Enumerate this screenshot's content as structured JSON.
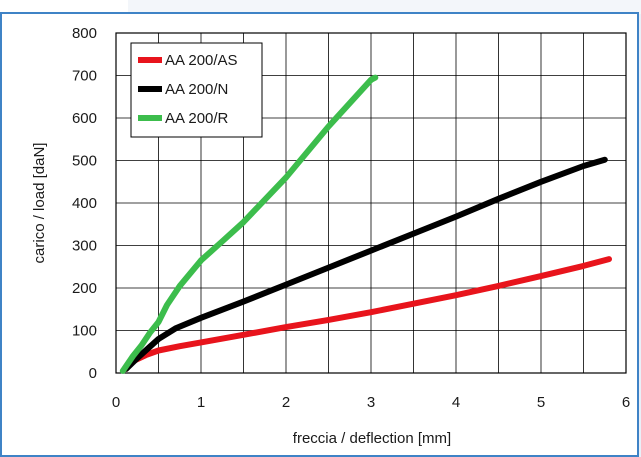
{
  "chart_data": {
    "type": "line",
    "title": "",
    "xlabel": "freccia / deflection [mm]",
    "ylabel": "carico / load [daN]",
    "xlim": [
      0,
      6
    ],
    "ylim": [
      0,
      800
    ],
    "x_ticks": [
      0,
      1,
      2,
      3,
      4,
      5,
      6
    ],
    "y_ticks": [
      0,
      100,
      200,
      300,
      400,
      500,
      600,
      700,
      800
    ],
    "x_minor_step": 0.5,
    "grid": true,
    "legend_position": "top-left",
    "series": [
      {
        "name": "AA 200/AS",
        "color": "#e8141c",
        "points": [
          [
            0.12,
            10
          ],
          [
            0.2,
            28
          ],
          [
            0.35,
            42
          ],
          [
            0.5,
            53
          ],
          [
            0.75,
            63
          ],
          [
            1.0,
            72
          ],
          [
            1.5,
            90
          ],
          [
            2.0,
            108
          ],
          [
            2.5,
            125
          ],
          [
            3.0,
            143
          ],
          [
            3.5,
            163
          ],
          [
            4.0,
            183
          ],
          [
            4.5,
            205
          ],
          [
            5.0,
            228
          ],
          [
            5.5,
            252
          ],
          [
            5.8,
            268
          ]
        ]
      },
      {
        "name": "AA 200/N",
        "color": "#000000",
        "points": [
          [
            0.12,
            10
          ],
          [
            0.25,
            35
          ],
          [
            0.4,
            62
          ],
          [
            0.5,
            80
          ],
          [
            0.7,
            105
          ],
          [
            1.0,
            130
          ],
          [
            1.5,
            168
          ],
          [
            2.0,
            208
          ],
          [
            2.5,
            248
          ],
          [
            3.0,
            288
          ],
          [
            3.5,
            328
          ],
          [
            4.0,
            368
          ],
          [
            4.5,
            410
          ],
          [
            5.0,
            450
          ],
          [
            5.5,
            487
          ],
          [
            5.75,
            502
          ]
        ]
      },
      {
        "name": "AA 200/R",
        "color": "#3cbd4c",
        "points": [
          [
            0.08,
            5
          ],
          [
            0.2,
            40
          ],
          [
            0.3,
            65
          ],
          [
            0.4,
            95
          ],
          [
            0.5,
            120
          ],
          [
            0.6,
            160
          ],
          [
            0.75,
            205
          ],
          [
            1.0,
            265
          ],
          [
            1.25,
            310
          ],
          [
            1.5,
            355
          ],
          [
            2.0,
            460
          ],
          [
            2.5,
            580
          ],
          [
            3.0,
            690
          ],
          [
            3.05,
            695
          ]
        ]
      }
    ]
  }
}
